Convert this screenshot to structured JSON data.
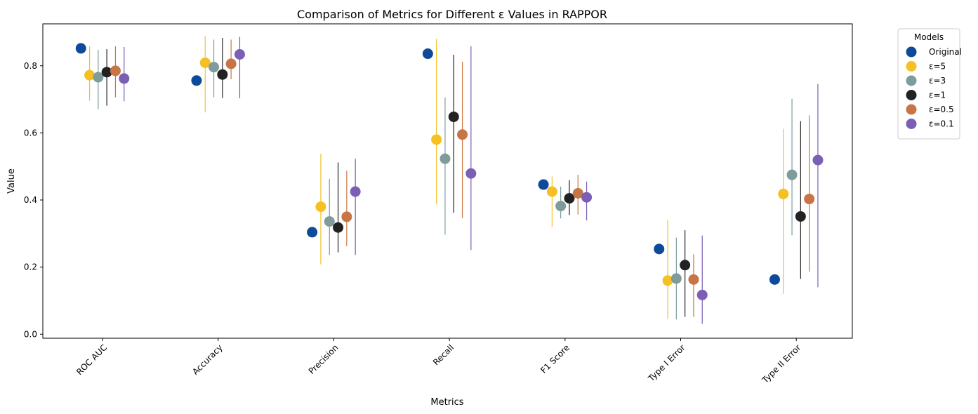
{
  "chart_data": {
    "type": "scatter",
    "title": "Comparison of Metrics for Different ε Values in RAPPOR",
    "xlabel": "Metrics",
    "ylabel": "Value",
    "categories": [
      "ROC AUC",
      "Accuracy",
      "Precision",
      "Recall",
      "F1 Score",
      "Type I Error",
      "Type II Error"
    ],
    "ylim": [
      -0.012,
      0.925
    ],
    "yticks": [
      "0.0",
      "0.2",
      "0.4",
      "0.6",
      "0.8"
    ],
    "ytick_values": [
      0.0,
      0.2,
      0.4,
      0.6,
      0.8
    ],
    "grid": false,
    "legend": {
      "title": "Models",
      "placement": "outside-upper-right"
    },
    "series": [
      {
        "name": "Original",
        "color": "#0d4a9a",
        "values": [
          0.852,
          0.756,
          0.304,
          0.836,
          0.446,
          0.254,
          0.163
        ],
        "err_low": [
          null,
          null,
          null,
          null,
          null,
          null,
          null
        ],
        "err_high": [
          null,
          null,
          null,
          null,
          null,
          null,
          null
        ]
      },
      {
        "name": "ε=5",
        "color": "#f5c022",
        "values": [
          0.772,
          0.809,
          0.38,
          0.58,
          0.425,
          0.16,
          0.418
        ],
        "err_low": [
          0.696,
          0.661,
          0.208,
          0.387,
          0.32,
          0.046,
          0.12
        ],
        "err_high": [
          0.858,
          0.888,
          0.538,
          0.88,
          0.47,
          0.34,
          0.612
        ]
      },
      {
        "name": "ε=3",
        "color": "#7f9b9b",
        "values": [
          0.766,
          0.796,
          0.336,
          0.523,
          0.382,
          0.166,
          0.475
        ],
        "err_low": [
          0.671,
          0.706,
          0.236,
          0.297,
          0.345,
          0.044,
          0.295
        ],
        "err_high": [
          0.847,
          0.878,
          0.463,
          0.706,
          0.44,
          0.288,
          0.702
        ]
      },
      {
        "name": "ε=1",
        "color": "#222222",
        "values": [
          0.781,
          0.774,
          0.318,
          0.648,
          0.405,
          0.206,
          0.351
        ],
        "err_low": [
          0.681,
          0.704,
          0.244,
          0.362,
          0.355,
          0.052,
          0.165
        ],
        "err_high": [
          0.85,
          0.883,
          0.512,
          0.833,
          0.459,
          0.31,
          0.635
        ]
      },
      {
        "name": "ε=0.5",
        "color": "#c87444",
        "values": [
          0.785,
          0.806,
          0.35,
          0.595,
          0.42,
          0.163,
          0.403
        ],
        "err_low": [
          0.706,
          0.76,
          0.262,
          0.346,
          0.357,
          0.052,
          0.186
        ],
        "err_high": [
          0.858,
          0.878,
          0.487,
          0.812,
          0.475,
          0.238,
          0.652
        ]
      },
      {
        "name": "ε=0.1",
        "color": "#7a5fb5",
        "values": [
          0.762,
          0.834,
          0.425,
          0.479,
          0.408,
          0.117,
          0.519
        ],
        "err_low": [
          0.694,
          0.703,
          0.236,
          0.251,
          0.339,
          0.031,
          0.14
        ],
        "err_high": [
          0.856,
          0.886,
          0.523,
          0.858,
          0.455,
          0.294,
          0.746
        ]
      }
    ]
  }
}
